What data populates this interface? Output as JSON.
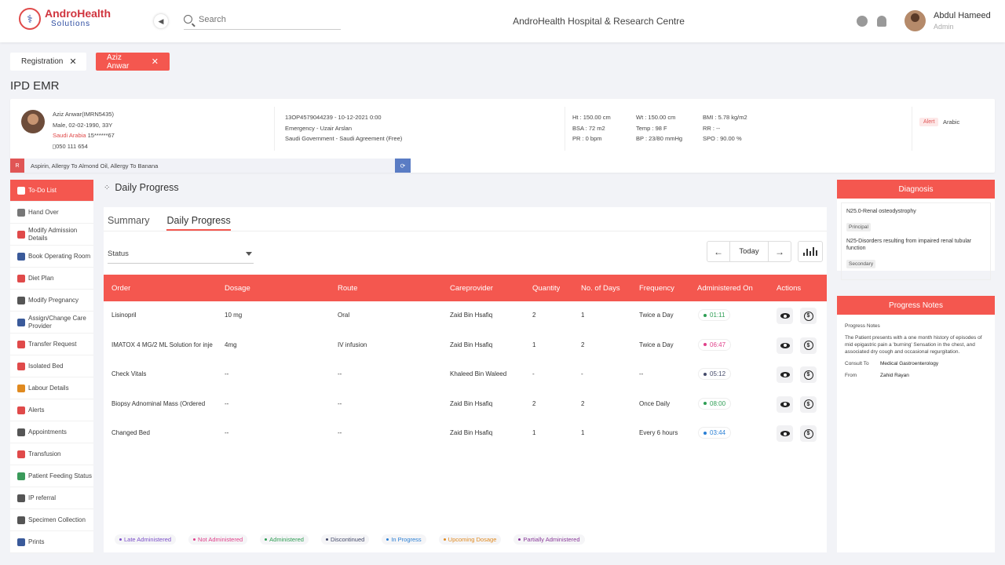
{
  "header": {
    "logo_name": "AndroHealth",
    "logo_sub": "Solutions",
    "search_placeholder": "Search",
    "hospital": "AndroHealth Hospital & Research Centre",
    "user_name": "Abdul Hameed",
    "user_role": "Admin"
  },
  "tabs": [
    {
      "label": "Registration",
      "close": "✕"
    },
    {
      "label": "Aziz Anwar",
      "close": "✕"
    }
  ],
  "page_title": "IPD EMR",
  "patient": {
    "name": "Aziz Anwar(IMRN5435)",
    "demographics": "Male, 02-02-1990, 33Y",
    "nationality": "Saudi Arabia",
    "id_masked": "15******67",
    "phone": "050 111 654",
    "visit": "13OP4579044239 - 10-12-2021 0:00",
    "department": "Emergency - Uzair Arslan",
    "payer": "Saudi Government - Saudi Agreement (Free)",
    "ht": "Ht : 150.00 cm",
    "bsa": "BSA : 72 m2",
    "pr": "PR : 0 bpm",
    "wt": "Wt : 150.00 cm",
    "temp": "Temp : 98 F",
    "bp": "BP : 23/80 mmHg",
    "bmi": "BMI : 5.78 kg/m2",
    "rr": "RR : --",
    "spo": "SPO : 90.00 %",
    "alert": "Alert",
    "language": "Arabic",
    "allergy_badge": "R",
    "allergies": "Aspirin, Allergy To Almond Oil, Allergy To Banana"
  },
  "sidebar": [
    {
      "label": "To-Do List",
      "icon": "list-icon",
      "color": "#ffffff"
    },
    {
      "label": "Hand Over",
      "icon": "heart-hand-icon",
      "color": "#777777"
    },
    {
      "label": "Modify Admission Details",
      "icon": "admission-icon",
      "color": "#e04a4a"
    },
    {
      "label": "Book Operating Room",
      "icon": "bed-icon",
      "color": "#3a5a9a"
    },
    {
      "label": "Diet Plan",
      "icon": "diet-icon",
      "color": "#e04a4a"
    },
    {
      "label": "Modify Pregnancy",
      "icon": "pregnancy-icon",
      "color": "#555555"
    },
    {
      "label": "Assign/Change Care Provider",
      "icon": "care-provider-icon",
      "color": "#3a5a9a"
    },
    {
      "label": "Transfer Request",
      "icon": "transfer-icon",
      "color": "#e04a4a"
    },
    {
      "label": "Isolated Bed",
      "icon": "isolated-bed-icon",
      "color": "#e04a4a"
    },
    {
      "label": "Labour Details",
      "icon": "labour-icon",
      "color": "#e08a20"
    },
    {
      "label": "Alerts",
      "icon": "alert-icon",
      "color": "#e04a4a"
    },
    {
      "label": "Appointments",
      "icon": "calendar-icon",
      "color": "#555555"
    },
    {
      "label": "Transfusion",
      "icon": "transfusion-icon",
      "color": "#e04a4a"
    },
    {
      "label": "Patient Feeding Status",
      "icon": "feeding-icon",
      "color": "#3a9a5a"
    },
    {
      "label": "IP referral",
      "icon": "referral-icon",
      "color": "#555555"
    },
    {
      "label": "Specimen Collection",
      "icon": "specimen-icon",
      "color": "#555555"
    },
    {
      "label": "Prints",
      "icon": "print-icon",
      "color": "#3a5a9a"
    }
  ],
  "section_title": "Daily Progress",
  "main": {
    "tabs": [
      "Summary",
      "Daily Progress"
    ],
    "status_label": "Status",
    "today": "Today",
    "prev": "←",
    "next": "→",
    "columns": [
      "Order",
      "Dosage",
      "Route",
      "Careprovider",
      "Quantity",
      "No. of Days",
      "Frequency",
      "Administered On",
      "Actions"
    ],
    "rows": [
      {
        "order": "Lisinopril",
        "dosage": "10 mg",
        "route": "Oral",
        "provider": "Zaid Bin Hsafiq",
        "qty": "2",
        "days": "1",
        "freq": "Twice a Day",
        "time": "01:11",
        "status": "Administered"
      },
      {
        "order": "IMATOX 4 MG/2 ML Solution for inje",
        "dosage": "4mg",
        "route": "IV infusion",
        "provider": "Zaid Bin Hsafiq",
        "qty": "1",
        "days": "2",
        "freq": "Twice a Day",
        "time": "06:47",
        "status": "Not Administered"
      },
      {
        "order": "Check Vitals",
        "dosage": "--",
        "route": "--",
        "provider": "Khaleed Bin Waleed",
        "qty": "-",
        "days": "-",
        "freq": "--",
        "time": "05:12",
        "status": "Discontinued"
      },
      {
        "order": "Biopsy Adnominal Mass (Ordered",
        "dosage": "--",
        "route": "--",
        "provider": "Zaid Bin Hsafiq",
        "qty": "2",
        "days": "2",
        "freq": "Once Daily",
        "time": "08:00",
        "status": "Administered"
      },
      {
        "order": "Changed Bed",
        "dosage": "--",
        "route": "--",
        "provider": "Zaid Bin Hsafiq",
        "qty": "1",
        "days": "1",
        "freq": "Every 6 hours",
        "time": "03:44",
        "status": "In Progress"
      }
    ],
    "legend": [
      {
        "label": "Late Administered",
        "color": "#7b4fc9"
      },
      {
        "label": "Not Administered",
        "color": "#e0408a"
      },
      {
        "label": "Administered",
        "color": "#2e9e54"
      },
      {
        "label": "Discontinued",
        "color": "#444a6a"
      },
      {
        "label": "In Progress",
        "color": "#2a7fd4"
      },
      {
        "label": "Upcoming Dosage",
        "color": "#e08a20"
      },
      {
        "label": "Partially Administered",
        "color": "#8a3a9a"
      }
    ]
  },
  "diagnosis": {
    "title": "Diagnosis",
    "items": [
      {
        "text": "N25.0-Renal osteodystrophy",
        "tag": "Principal"
      },
      {
        "text": "N25-Disorders resulting from impaired renal tubular function",
        "tag": "Secondary"
      }
    ]
  },
  "progress_notes": {
    "title": "Progress Notes",
    "heading": "Progress Notes",
    "body": "The Patient presents with a one month history of episodes of mid epigastric pain a 'burning' Sensation in the chest, and associated dry cough and occasional regurgitation.",
    "consult_label": "Consult To",
    "consult_value": "Medical Gastroenterology",
    "from_label": "From",
    "from_value": "Zahid Rayan"
  },
  "colors": {
    "accent": "#f4574f"
  }
}
